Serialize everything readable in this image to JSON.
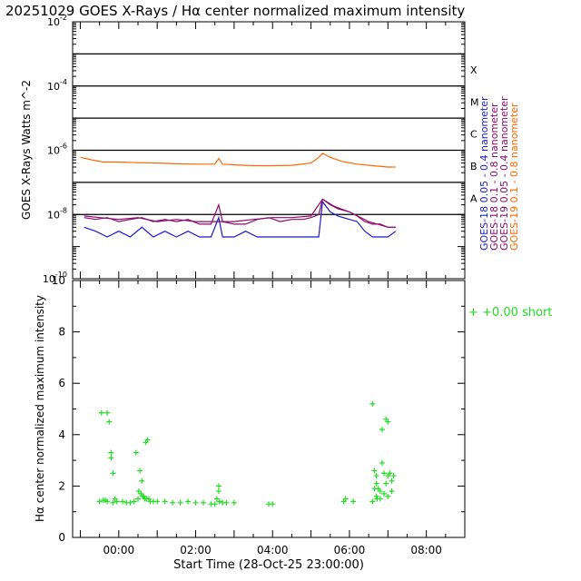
{
  "title": "20251029 GOES X-Rays / Hα center normalized maximum intensity",
  "colors": {
    "goes18_short": "#1a1acc",
    "goes18_long": "#8b0a6b",
    "goes19_short": "#8b0a6b",
    "goes19_long": "#ff6600",
    "halpha": "#22dd22"
  },
  "chart_data": [
    {
      "type": "line",
      "title": "GOES X-Rays",
      "ylabel": "GOES X-Rays Watts m^-2",
      "yscale": "log",
      "ylim": [
        1e-10,
        0.01
      ],
      "xlim": [
        -1.2,
        9.0
      ],
      "y_ticks": [
        {
          "value": 0.01,
          "base": "10",
          "exp": "-2"
        },
        {
          "value": 0.0001,
          "base": "10",
          "exp": "-4"
        },
        {
          "value": 1e-06,
          "base": "10",
          "exp": "-6"
        },
        {
          "value": 1e-08,
          "base": "10",
          "exp": "-8"
        },
        {
          "value": 1e-10,
          "base": "10",
          "exp": "-10"
        }
      ],
      "flare_levels": [
        {
          "class": "X",
          "value": 0.0001
        },
        {
          "class": "M",
          "value": 1e-05
        },
        {
          "class": "C",
          "value": 1e-06
        },
        {
          "class": "B",
          "value": 1e-07
        },
        {
          "class": "A",
          "value": 1e-08
        }
      ],
      "grid_lines": [
        0.001,
        0.0001,
        1e-05,
        1e-06,
        1e-07,
        1e-08
      ],
      "series": [
        {
          "name": "GOES-18 0.05 - 0.4 nanometer",
          "color": "#1a1acc",
          "x": [
            -0.9,
            -0.6,
            -0.3,
            0.0,
            0.3,
            0.6,
            0.9,
            1.2,
            1.5,
            1.8,
            2.1,
            2.4,
            2.6,
            2.7,
            3.0,
            3.3,
            3.6,
            3.9,
            4.2,
            4.5,
            4.8,
            5.0,
            5.2,
            5.3,
            5.5,
            5.7,
            6.0,
            6.2,
            6.4,
            6.6,
            6.8,
            7.0,
            7.2
          ],
          "y": [
            4e-09,
            3e-09,
            2e-09,
            3e-09,
            2e-09,
            4e-09,
            2e-09,
            3e-09,
            2e-09,
            3e-09,
            2e-09,
            2e-09,
            8e-09,
            2e-09,
            2e-09,
            3e-09,
            2e-09,
            2e-09,
            2e-09,
            2e-09,
            2e-09,
            2e-09,
            2e-09,
            2.5e-08,
            1.2e-08,
            9e-09,
            7e-09,
            6e-09,
            3e-09,
            2e-09,
            2e-09,
            2e-09,
            3e-09
          ]
        },
        {
          "name": "GOES-18 0.1 - 0.8 nanometer",
          "color": "#8b0a6b",
          "x": [
            -0.9,
            -0.6,
            -0.3,
            0.0,
            0.3,
            0.6,
            0.9,
            1.2,
            1.5,
            1.8,
            2.1,
            2.4,
            2.6,
            2.7,
            3.0,
            3.3,
            3.6,
            3.9,
            4.2,
            4.5,
            4.8,
            5.0,
            5.2,
            5.3,
            5.5,
            5.7,
            6.0,
            6.2,
            6.4,
            6.6,
            6.8,
            7.0,
            7.2
          ],
          "y": [
            8e-09,
            7e-09,
            8e-09,
            6e-09,
            7e-09,
            8e-09,
            6e-09,
            7e-09,
            6e-09,
            7e-09,
            5e-09,
            5e-09,
            2e-08,
            6e-09,
            5e-09,
            5e-09,
            7e-09,
            8e-09,
            6e-09,
            7e-09,
            7e-09,
            8e-09,
            1e-08,
            3e-08,
            2e-08,
            1.5e-08,
            1.2e-08,
            9e-09,
            6e-09,
            5e-09,
            5e-09,
            4e-09,
            4e-09
          ]
        },
        {
          "name": "GOES-19 0.05 - 0.4 nanometer",
          "color": "#8b0a6b",
          "x": [
            -0.9,
            -0.5,
            0.0,
            0.5,
            1.0,
            1.5,
            2.0,
            2.5,
            3.0,
            3.5,
            4.0,
            4.5,
            5.0,
            5.3,
            5.6,
            6.0,
            6.5,
            7.0,
            7.2
          ],
          "y": [
            9e-09,
            8e-09,
            7e-09,
            8e-09,
            6e-09,
            7e-09,
            6e-09,
            6e-09,
            6e-09,
            7e-09,
            8e-09,
            8e-09,
            9e-09,
            3e-08,
            1.8e-08,
            1.2e-08,
            6e-09,
            4e-09,
            4e-09
          ]
        },
        {
          "name": "GOES-19 0.1 - 0.8 nanometer",
          "color": "#ff6600",
          "x": [
            -1.0,
            -0.7,
            -0.4,
            0.0,
            0.5,
            1.0,
            1.5,
            2.0,
            2.5,
            2.6,
            2.7,
            3.0,
            3.5,
            4.0,
            4.5,
            5.0,
            5.2,
            5.3,
            5.5,
            5.8,
            6.2,
            6.6,
            7.0,
            7.2
          ],
          "y": [
            6e-07,
            5e-07,
            4.3e-07,
            4.3e-07,
            4.1e-07,
            4e-07,
            3.8e-07,
            3.7e-07,
            3.7e-07,
            5.5e-07,
            3.7e-07,
            3.5e-07,
            3.3e-07,
            3.3e-07,
            3.4e-07,
            4e-07,
            6e-07,
            8e-07,
            6e-07,
            4.5e-07,
            3.7e-07,
            3.3e-07,
            3e-07,
            3e-07
          ]
        }
      ]
    },
    {
      "type": "scatter",
      "title": "Hα center normalized maximum intensity",
      "ylabel": "Hα center normalized maximum intensity",
      "xlabel": "Start Time (28-Oct-25 23:00:00)",
      "ylim": [
        0,
        10
      ],
      "xlim": [
        -1.2,
        9.0
      ],
      "y_ticks": [
        "0",
        "2",
        "4",
        "6",
        "8",
        "10"
      ],
      "x_ticks": [
        {
          "value": 0,
          "label": "00:00"
        },
        {
          "value": 2,
          "label": "02:00"
        },
        {
          "value": 4,
          "label": "04:00"
        },
        {
          "value": 6,
          "label": "06:00"
        },
        {
          "value": 8,
          "label": "08:00"
        }
      ],
      "legend": {
        "text": "+  +0.00 short",
        "placement": "right"
      },
      "series": [
        {
          "name": "Hα",
          "color": "#22dd22",
          "x": [
            -0.45,
            -0.3,
            -0.25,
            -0.2,
            -0.2,
            -0.15,
            -0.1,
            0.45,
            0.55,
            0.6,
            0.65,
            0.7,
            0.75,
            0.5,
            0.52,
            0.58,
            0.62,
            0.68,
            0.72,
            0.78,
            0.82,
            0.9,
            -0.5,
            -0.4,
            -0.35,
            -0.3,
            -0.15,
            -0.05,
            0.1,
            0.2,
            0.3,
            0.4,
            1.0,
            1.2,
            1.4,
            1.6,
            1.8,
            2.0,
            2.2,
            2.4,
            2.5,
            2.55,
            2.6,
            2.6,
            2.62,
            2.7,
            2.8,
            3.0,
            3.9,
            4.0,
            5.85,
            5.9,
            6.1,
            6.6,
            6.65,
            6.7,
            6.7,
            6.75,
            6.8,
            6.85,
            6.9,
            6.95,
            7.0,
            7.0,
            7.05,
            7.1,
            7.1,
            7.15,
            6.6,
            6.7,
            6.8,
            6.9,
            7.0,
            7.1,
            6.65,
            6.72,
            6.85,
            6.95
          ],
          "y": [
            4.85,
            4.85,
            4.5,
            3.3,
            3.1,
            2.5,
            1.5,
            3.3,
            2.6,
            2.2,
            1.6,
            3.7,
            3.8,
            1.5,
            1.8,
            1.7,
            1.6,
            1.5,
            1.5,
            1.5,
            1.4,
            1.4,
            1.4,
            1.45,
            1.45,
            1.4,
            1.35,
            1.4,
            1.4,
            1.35,
            1.35,
            1.4,
            1.4,
            1.4,
            1.35,
            1.35,
            1.4,
            1.35,
            1.35,
            1.3,
            1.3,
            1.5,
            1.8,
            2.0,
            1.4,
            1.35,
            1.35,
            1.35,
            1.3,
            1.3,
            1.4,
            1.5,
            1.4,
            5.2,
            2.6,
            2.4,
            2.1,
            1.9,
            1.8,
            4.2,
            2.5,
            4.6,
            4.5,
            2.4,
            2.5,
            2.2,
            1.8,
            2.4,
            1.4,
            1.6,
            1.5,
            1.7,
            1.6,
            1.8,
            1.9,
            1.5,
            2.9,
            2.1
          ]
        }
      ]
    }
  ]
}
